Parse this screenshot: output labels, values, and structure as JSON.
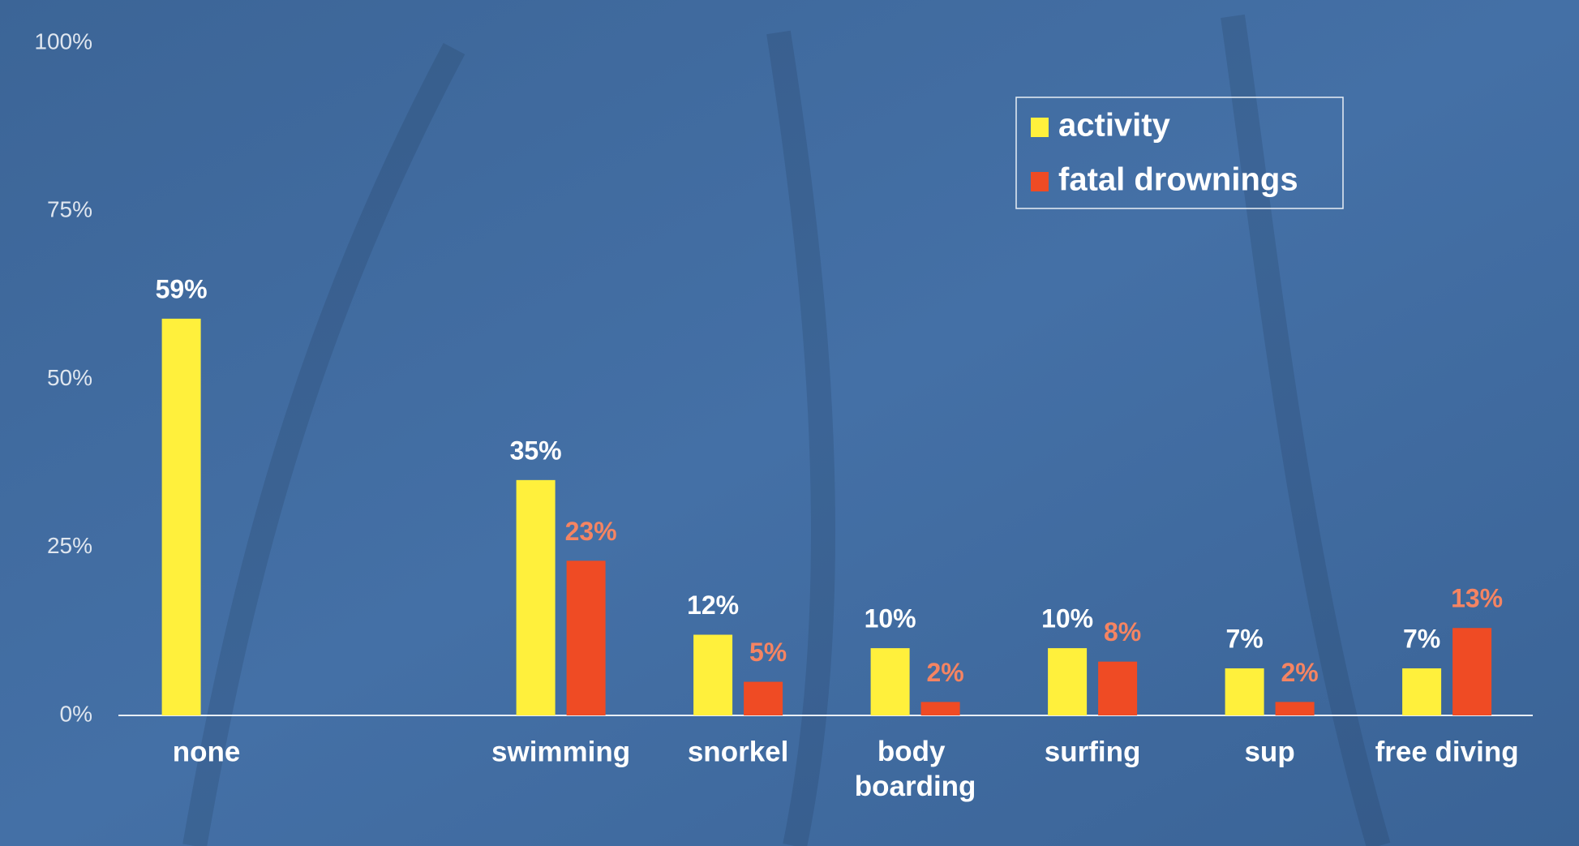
{
  "chart_data": {
    "type": "bar",
    "categories": [
      "none",
      null,
      "swimming",
      "snorkel",
      "body boarding",
      "surfing",
      "sup",
      "free diving"
    ],
    "series": [
      {
        "name": "activity",
        "color": "#fff03c",
        "label_color": "#ffffff",
        "values": [
          59,
          null,
          35,
          12,
          10,
          10,
          7,
          7
        ],
        "value_labels": [
          "59%",
          null,
          "35%",
          "12%",
          "10%",
          "10%",
          "7%",
          "7%"
        ]
      },
      {
        "name": "fatal drownings",
        "color": "#ef4b24",
        "label_color": "#f58462",
        "values": [
          null,
          null,
          23,
          5,
          2,
          8,
          2,
          13
        ],
        "value_labels": [
          null,
          null,
          "23%",
          "5%",
          "2%",
          "8%",
          "2%",
          "13%"
        ]
      }
    ],
    "ylim": [
      0,
      100
    ],
    "yticks": [
      {
        "value": 0,
        "label": "0%"
      },
      {
        "value": 25,
        "label": "25%"
      },
      {
        "value": 50,
        "label": "50%"
      },
      {
        "value": 75,
        "label": "75%"
      },
      {
        "value": 100,
        "label": "100%"
      }
    ],
    "legend": "upper right"
  }
}
